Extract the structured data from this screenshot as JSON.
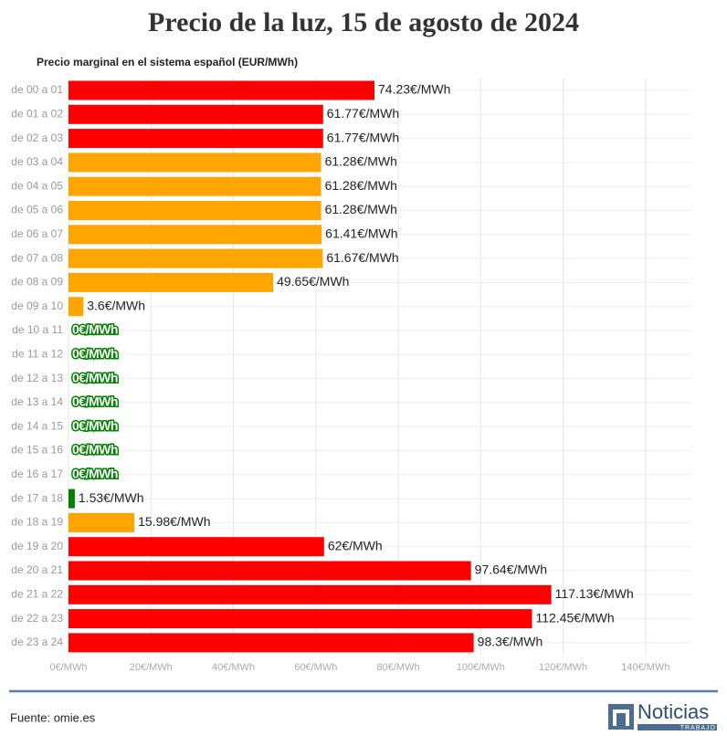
{
  "chart_data": {
    "type": "hbar",
    "title": "Precio de la luz, 15 de agosto de 2024",
    "subtitle": "Precio marginal en el sistema español (EUR/MWh)",
    "categories": [
      "de 00 a 01",
      "de 01 a 02",
      "de 02 a 03",
      "de 03 a 04",
      "de 04 a 05",
      "de 05 a 06",
      "de 06 a 07",
      "de 07 a 08",
      "de 08 a 09",
      "de 09 a 10",
      "de 10 a 11",
      "de 11 a 12",
      "de 12 a 13",
      "de 13 a 14",
      "de 14 a 15",
      "de 15 a 16",
      "de 16 a 17",
      "de 17 a 18",
      "de 18 a 19",
      "de 19 a 20",
      "de 20 a 21",
      "de 21 a 22",
      "de 22 a 23",
      "de 23 a 24"
    ],
    "values": [
      74.23,
      61.77,
      61.77,
      61.28,
      61.28,
      61.28,
      61.41,
      61.67,
      49.65,
      3.6,
      0,
      0,
      0,
      0,
      0,
      0,
      0,
      1.53,
      15.98,
      62,
      97.64,
      117.13,
      112.45,
      98.3
    ],
    "value_labels": [
      "74.23€/MWh",
      "61.77€/MWh",
      "61.77€/MWh",
      "61.28€/MWh",
      "61.28€/MWh",
      "61.28€/MWh",
      "61.41€/MWh",
      "61.67€/MWh",
      "49.65€/MWh",
      "3.6€/MWh",
      "0€/MWh",
      "0€/MWh",
      "0€/MWh",
      "0€/MWh",
      "0€/MWh",
      "0€/MWh",
      "0€/MWh",
      "1.53€/MWh",
      "15.98€/MWh",
      "62€/MWh",
      "97.64€/MWh",
      "117.13€/MWh",
      "112.45€/MWh",
      "98.3€/MWh"
    ],
    "colors": [
      "#ff0000",
      "#ff0000",
      "#ff0000",
      "#ffa500",
      "#ffa500",
      "#ffa500",
      "#ffa500",
      "#ffa500",
      "#ffa500",
      "#ffa500",
      "#008000",
      "#008000",
      "#008000",
      "#008000",
      "#008000",
      "#008000",
      "#008000",
      "#008000",
      "#ffa500",
      "#ff0000",
      "#ff0000",
      "#ff0000",
      "#ff0000",
      "#ff0000"
    ],
    "xlim": [
      0,
      150
    ],
    "xticks": [
      {
        "value": 0,
        "label": "0€/MWh"
      },
      {
        "value": 20,
        "label": "20€/MWh"
      },
      {
        "value": 40,
        "label": "40€/MWh"
      },
      {
        "value": 60,
        "label": "60€/MWh"
      },
      {
        "value": 80,
        "label": "80€/MWh"
      },
      {
        "value": 100,
        "label": "100€/MWh"
      },
      {
        "value": 120,
        "label": "120€/MWh"
      },
      {
        "value": 140,
        "label": "140€/MWh"
      }
    ],
    "grid": true,
    "source": "Fuente: omie.es",
    "logo": {
      "name": "Noticias",
      "tagline": "TRABAJO"
    }
  }
}
